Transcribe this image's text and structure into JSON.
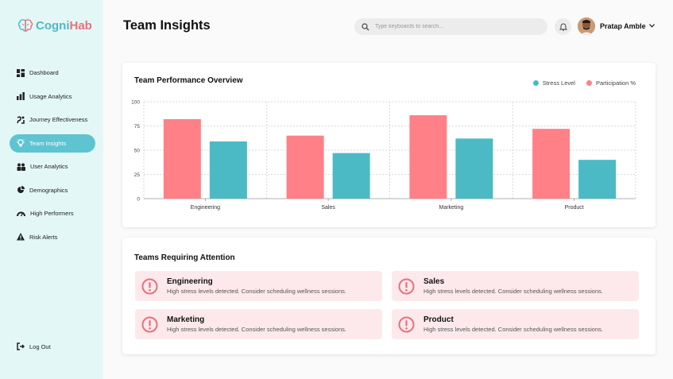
{
  "brand": {
    "part1": "Cogni",
    "part2": "Hab"
  },
  "sidebar": {
    "items": [
      {
        "label": "Dashboard",
        "active": false
      },
      {
        "label": "Usage Analytics",
        "active": false
      },
      {
        "label": "Journey Effectiveness",
        "active": false
      },
      {
        "label": "Team Insights",
        "active": true
      },
      {
        "label": "User Analytics",
        "active": false
      },
      {
        "label": "Demographics",
        "active": false
      },
      {
        "label": "High Performers",
        "active": false
      },
      {
        "label": "Risk Alerts",
        "active": false
      }
    ],
    "logout": "Log Out"
  },
  "header": {
    "title": "Team Insights",
    "search_placeholder": "Type keyboards to search...",
    "user_name": "Pratap Amble"
  },
  "performance": {
    "title": "Team Performance Overview",
    "legend": [
      "Stress Level",
      "Participation %"
    ]
  },
  "chart_data": {
    "type": "bar",
    "title": "Team Performance Overview",
    "categories": [
      "Engineering",
      "Sales",
      "Marketing",
      "Product"
    ],
    "series": [
      {
        "name": "Participation %",
        "color": "#ff8087",
        "values": [
          82,
          65,
          86,
          72
        ]
      },
      {
        "name": "Stress Level",
        "color": "#4bbac5",
        "values": [
          59,
          47,
          62,
          40
        ]
      }
    ],
    "ylim": [
      0,
      100
    ],
    "yticks": [
      0,
      25,
      50,
      75,
      100
    ],
    "grid": true,
    "legend_position": "top-right"
  },
  "attention": {
    "title": "Teams Requiring Attention",
    "teams": [
      {
        "name": "Engineering",
        "message": "High stress levels detected. Consider scheduling wellness sessions."
      },
      {
        "name": "Sales",
        "message": "High stress levels detected. Consider scheduling wellness sessions."
      },
      {
        "name": "Marketing",
        "message": "High stress levels detected. Consider scheduling wellness sessions."
      },
      {
        "name": "Product",
        "message": "High stress levels detected. Consider scheduling wellness sessions."
      }
    ]
  },
  "colors": {
    "accent": "#5ec4d2",
    "sidebar_bg": "#e3f7f6",
    "alert_bg": "#fde9eb",
    "alert_icon": "#e8707c"
  },
  "icons": {
    "search": "search-icon",
    "bell": "bell-icon",
    "chevron": "chevron-down-icon",
    "alert": "alert-circle-icon",
    "logout": "logout-icon"
  }
}
